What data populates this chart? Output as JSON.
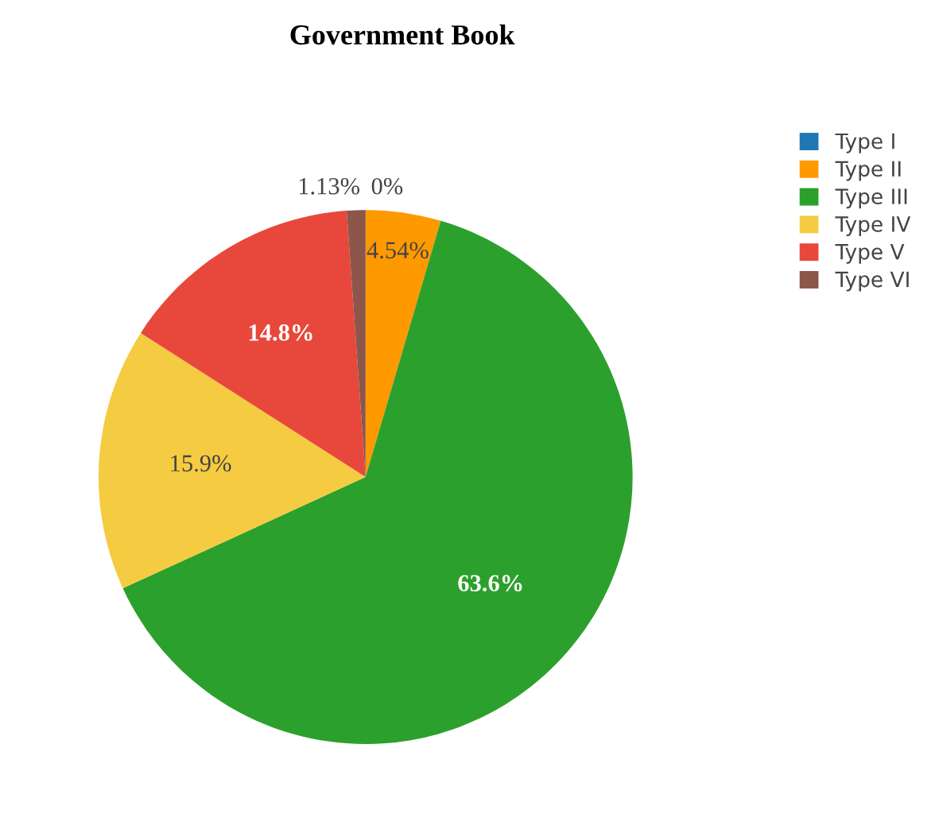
{
  "chart_data": {
    "type": "pie",
    "title": "Government Book",
    "categories": [
      "Type I",
      "Type II",
      "Type III",
      "Type IV",
      "Type V",
      "Type VI"
    ],
    "values": [
      0,
      4.54,
      63.6,
      15.9,
      14.8,
      1.13
    ],
    "value_labels": [
      "0%",
      "4.54%",
      "63.6%",
      "15.9%",
      "14.8%",
      "1.13%"
    ],
    "colors": [
      "#1f77b4",
      "#ff9900",
      "#2ca02c",
      "#f5cb42",
      "#e8483b",
      "#8c564b"
    ],
    "legend": "top right"
  }
}
